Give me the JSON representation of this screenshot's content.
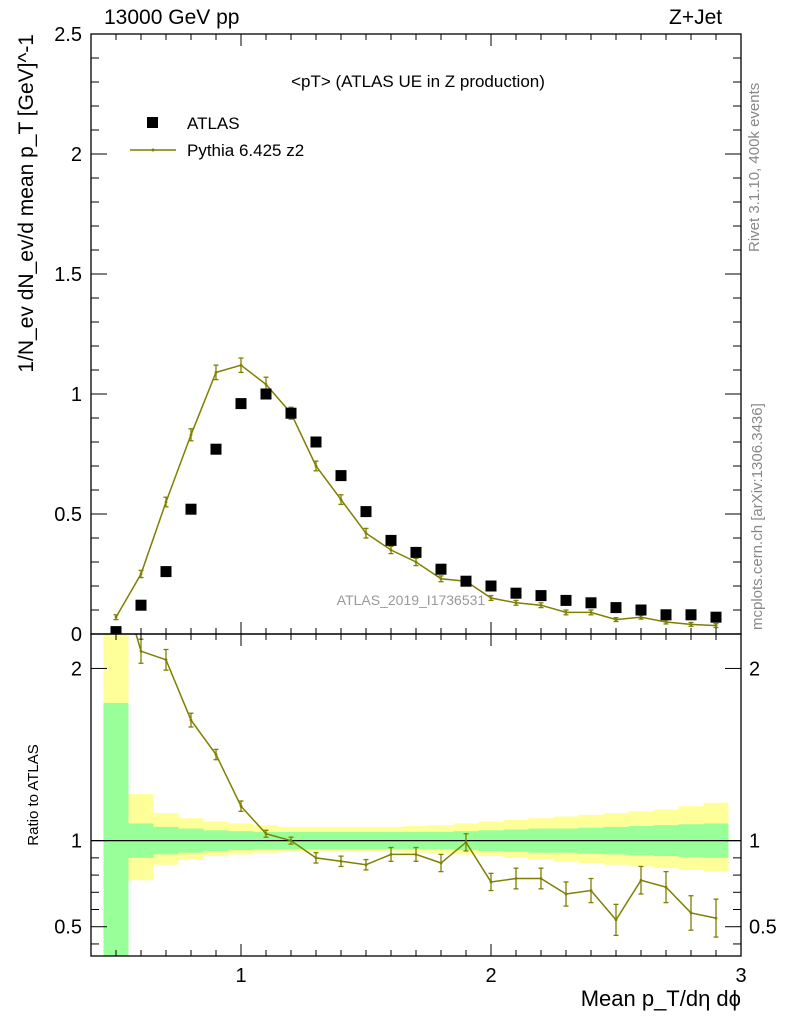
{
  "header": {
    "left": "13000 GeV pp",
    "right": "Z+Jet"
  },
  "side_labels": {
    "rivet": "Rivet 3.1.10,  400k events",
    "mcplots": "mcplots.cern.ch [arXiv:1306.3436]"
  },
  "colors": {
    "data": "#000000",
    "mc": "#7f7f00",
    "band_inner": "#99ff99",
    "band_outer": "#ffff99"
  },
  "chart_data": [
    {
      "type": "scatter",
      "title": "<pT> (ATLAS UE in Z production)",
      "ylabel": "1/N_ev dN_ev/d mean p_T [GeV]^-1",
      "xlim": [
        0.4,
        3.0
      ],
      "ylim": [
        0,
        2.5
      ],
      "y_ticks": [
        "0",
        "0.5",
        "1",
        "1.5",
        "2",
        "2.5"
      ],
      "watermark": "ATLAS_2019_I1736531",
      "legend_position": "top-left",
      "series": [
        {
          "name": "ATLAS",
          "style": "markers",
          "x": [
            0.5,
            0.6,
            0.7,
            0.8,
            0.9,
            1.0,
            1.1,
            1.2,
            1.3,
            1.4,
            1.5,
            1.6,
            1.7,
            1.8,
            1.9,
            2.0,
            2.1,
            2.2,
            2.3,
            2.4,
            2.5,
            2.6,
            2.7,
            2.8,
            2.9
          ],
          "y": [
            0.01,
            0.12,
            0.26,
            0.52,
            0.77,
            0.96,
            1.0,
            0.92,
            0.8,
            0.66,
            0.51,
            0.39,
            0.34,
            0.27,
            0.22,
            0.2,
            0.17,
            0.16,
            0.14,
            0.13,
            0.11,
            0.1,
            0.08,
            0.08,
            0.07
          ]
        },
        {
          "name": "Pythia 6.425 z2",
          "style": "line",
          "x": [
            0.5,
            0.6,
            0.7,
            0.8,
            0.9,
            1.0,
            1.1,
            1.2,
            1.3,
            1.4,
            1.5,
            1.6,
            1.7,
            1.8,
            1.9,
            2.0,
            2.1,
            2.2,
            2.3,
            2.4,
            2.5,
            2.6,
            2.7,
            2.8,
            2.9
          ],
          "y": [
            0.07,
            0.25,
            0.55,
            0.83,
            1.09,
            1.12,
            1.04,
            0.92,
            0.7,
            0.56,
            0.42,
            0.35,
            0.3,
            0.23,
            0.22,
            0.15,
            0.13,
            0.12,
            0.09,
            0.09,
            0.06,
            0.07,
            0.05,
            0.04,
            0.035
          ],
          "err": [
            0.01,
            0.015,
            0.02,
            0.025,
            0.03,
            0.03,
            0.03,
            0.025,
            0.02,
            0.02,
            0.02,
            0.015,
            0.015,
            0.012,
            0.012,
            0.01,
            0.01,
            0.01,
            0.01,
            0.01,
            0.008,
            0.008,
            0.008,
            0.008,
            0.008
          ]
        }
      ]
    },
    {
      "type": "line",
      "ylabel": "Ratio to ATLAS",
      "xlabel": "Mean p_T/dη dϕ",
      "xlim": [
        0.4,
        3.0
      ],
      "ylim": [
        0.33,
        2.2
      ],
      "x_ticks": [
        "1",
        "2",
        "3"
      ],
      "y_ticks": [
        "0.5",
        "1",
        "2"
      ],
      "reference": 1,
      "x": [
        0.5,
        0.6,
        0.7,
        0.8,
        0.9,
        1.0,
        1.1,
        1.2,
        1.3,
        1.4,
        1.5,
        1.6,
        1.7,
        1.8,
        1.9,
        2.0,
        2.1,
        2.2,
        2.3,
        2.4,
        2.5,
        2.6,
        2.7,
        2.8,
        2.9
      ],
      "ratio": [
        2.6,
        2.1,
        2.05,
        1.7,
        1.5,
        1.2,
        1.04,
        1.0,
        0.9,
        0.88,
        0.86,
        0.92,
        0.92,
        0.87,
        0.99,
        0.76,
        0.78,
        0.78,
        0.69,
        0.71,
        0.54,
        0.77,
        0.73,
        0.58,
        0.55
      ],
      "ratio_err": [
        0.1,
        0.07,
        0.06,
        0.04,
        0.03,
        0.03,
        0.02,
        0.02,
        0.03,
        0.03,
        0.03,
        0.04,
        0.04,
        0.05,
        0.05,
        0.05,
        0.06,
        0.06,
        0.07,
        0.07,
        0.09,
        0.08,
        0.09,
        0.1,
        0.11
      ],
      "band_inner_lo": [
        0.3,
        0.9,
        0.92,
        0.93,
        0.94,
        0.945,
        0.95,
        0.95,
        0.95,
        0.95,
        0.95,
        0.95,
        0.95,
        0.95,
        0.945,
        0.94,
        0.935,
        0.93,
        0.93,
        0.925,
        0.92,
        0.915,
        0.91,
        0.905,
        0.9
      ],
      "band_inner_hi": [
        1.8,
        1.1,
        1.08,
        1.07,
        1.06,
        1.055,
        1.05,
        1.05,
        1.05,
        1.05,
        1.05,
        1.05,
        1.05,
        1.05,
        1.055,
        1.06,
        1.065,
        1.07,
        1.07,
        1.075,
        1.08,
        1.085,
        1.09,
        1.095,
        1.1
      ],
      "band_outer_lo": [
        0.3,
        0.77,
        0.86,
        0.89,
        0.91,
        0.92,
        0.93,
        0.935,
        0.935,
        0.935,
        0.935,
        0.935,
        0.93,
        0.925,
        0.92,
        0.91,
        0.9,
        0.89,
        0.88,
        0.87,
        0.86,
        0.85,
        0.84,
        0.83,
        0.82
      ],
      "band_outer_hi": [
        2.3,
        1.27,
        1.16,
        1.13,
        1.11,
        1.1,
        1.09,
        1.08,
        1.08,
        1.08,
        1.08,
        1.08,
        1.085,
        1.09,
        1.1,
        1.11,
        1.12,
        1.13,
        1.14,
        1.15,
        1.16,
        1.17,
        1.18,
        1.2,
        1.22
      ]
    }
  ]
}
